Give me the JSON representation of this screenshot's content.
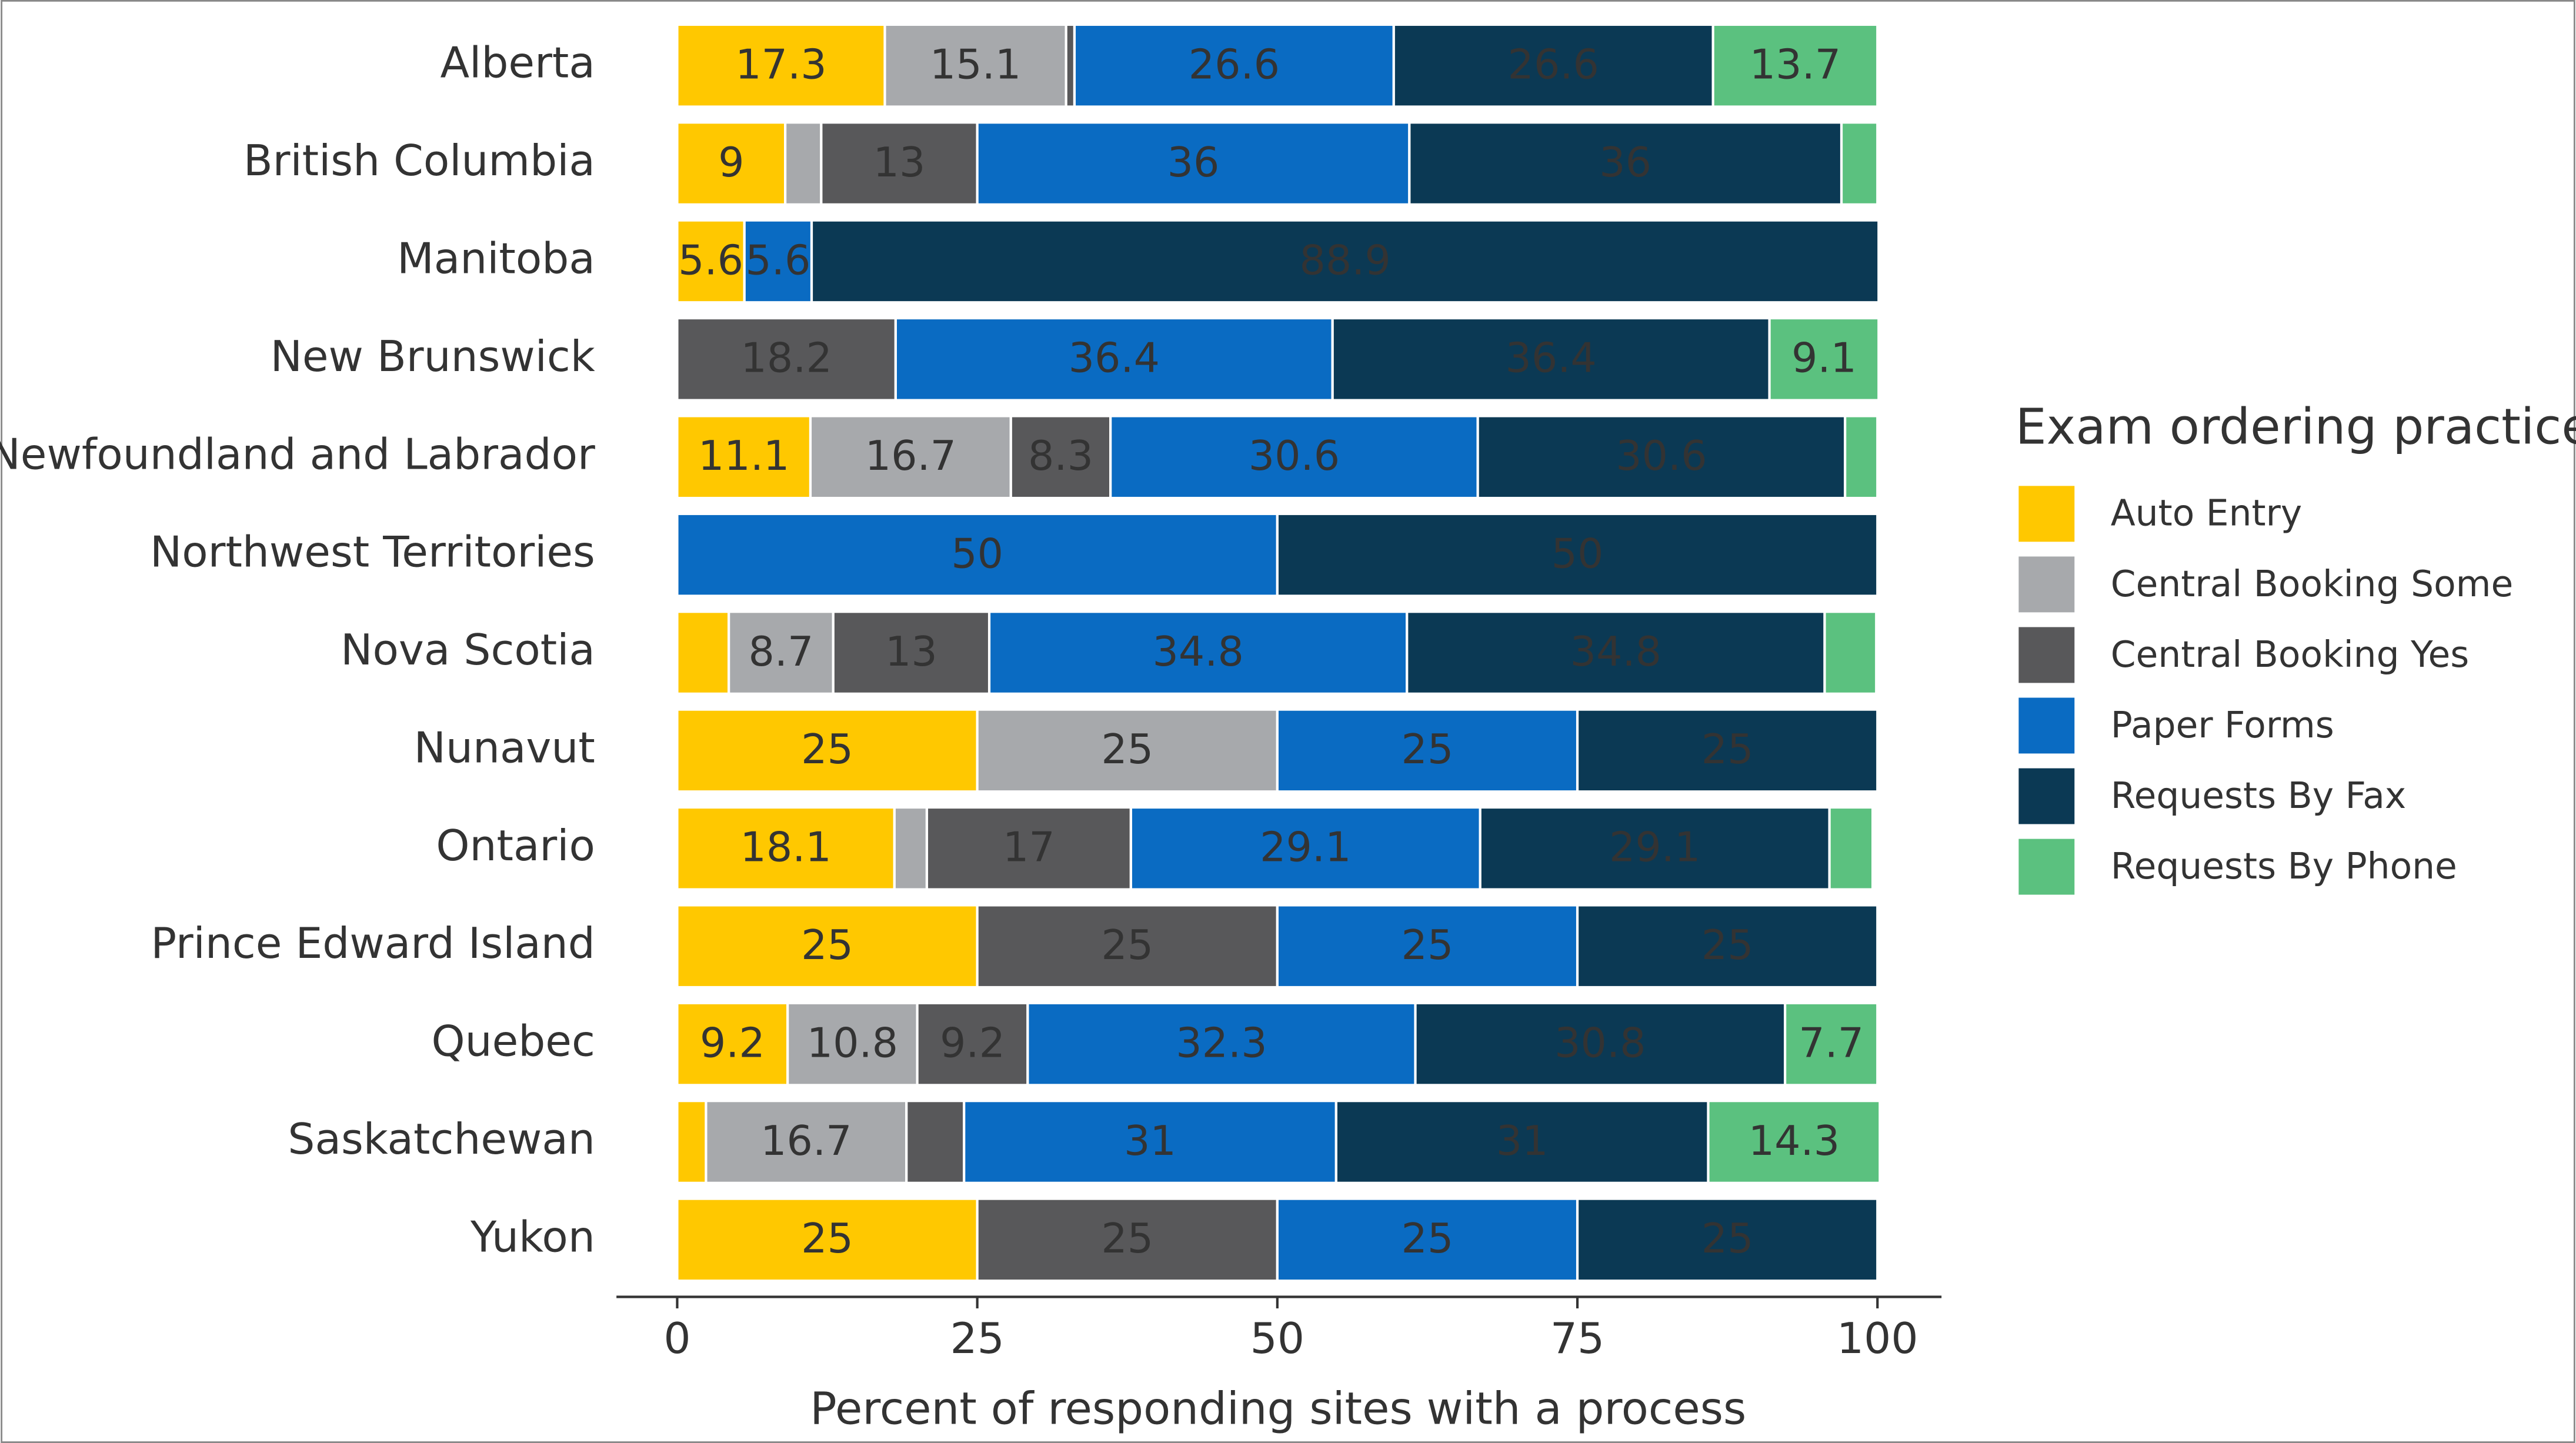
{
  "chart_data": {
    "type": "stacked-barh",
    "xlabel": "Percent of responding sites with a process",
    "legend_title": "Exam ordering practice",
    "legend_position": "right",
    "categories": [
      "Alberta",
      "British Columbia",
      "Manitoba",
      "New Brunswick",
      "Newfoundland and Labrador",
      "Northwest Territories",
      "Nova Scotia",
      "Nunavut",
      "Ontario",
      "Prince Edward Island",
      "Quebec",
      "Saskatchewan",
      "Yukon"
    ],
    "series": [
      {
        "name": "Auto Entry",
        "color": "#FFC800",
        "values": [
          17.3,
          9,
          5.6,
          null,
          11.1,
          null,
          4.3,
          25,
          18.1,
          25,
          9.2,
          2.4,
          25
        ]
      },
      {
        "name": "Central Booking Some",
        "color": "#A7A9AC",
        "values": [
          15.1,
          3,
          null,
          null,
          16.7,
          null,
          8.7,
          25,
          2.7,
          null,
          10.8,
          16.7,
          null
        ]
      },
      {
        "name": "Central Booking Yes",
        "color": "#58585A",
        "values": [
          0.7,
          13,
          null,
          18.2,
          8.3,
          null,
          13,
          null,
          17,
          25,
          9.2,
          4.8,
          25
        ]
      },
      {
        "name": "Paper Forms",
        "color": "#0A6BC2",
        "values": [
          26.6,
          36,
          5.6,
          36.4,
          30.6,
          50,
          34.8,
          25,
          29.1,
          25,
          32.3,
          31,
          25
        ]
      },
      {
        "name": "Requests By Fax",
        "color": "#0B3954",
        "values": [
          26.6,
          36,
          88.9,
          36.4,
          30.6,
          50,
          34.8,
          25,
          29.1,
          25,
          30.8,
          31,
          25
        ]
      },
      {
        "name": "Requests By Phone",
        "color": "#5BC17F",
        "values": [
          13.7,
          3,
          null,
          9.1,
          2.7,
          null,
          4.3,
          null,
          3.6,
          null,
          7.7,
          14.3,
          null
        ]
      }
    ],
    "xlim": [
      0,
      100
    ],
    "xticks": [
      0,
      25,
      50,
      75,
      100
    ]
  }
}
